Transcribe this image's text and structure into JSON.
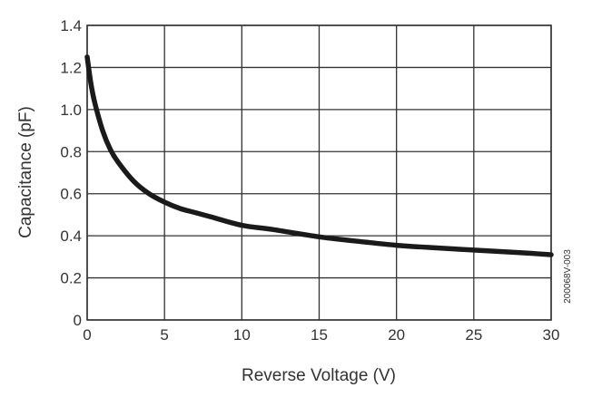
{
  "chart_data": {
    "type": "line",
    "title": "",
    "xlabel": "Reverse Voltage (V)",
    "ylabel": "Capacitance (pF)",
    "xlim": [
      0,
      30
    ],
    "ylim": [
      0,
      1.4
    ],
    "x_ticks": [
      "0",
      "5",
      "10",
      "15",
      "20",
      "25",
      "30"
    ],
    "y_ticks": [
      "0",
      "0.2",
      "0.4",
      "0.6",
      "0.8",
      "1.0",
      "1.2",
      "1.4"
    ],
    "grid": true,
    "legend": "none",
    "series": [
      {
        "color": "#1a1a1a",
        "x": [
          0,
          0.25,
          0.5,
          1,
          1.5,
          2,
          3,
          4,
          5,
          6,
          7,
          8,
          10,
          12,
          15,
          18,
          20,
          22,
          25,
          28,
          30
        ],
        "y": [
          1.25,
          1.12,
          1.03,
          0.9,
          0.81,
          0.75,
          0.66,
          0.6,
          0.56,
          0.53,
          0.51,
          0.49,
          0.45,
          0.43,
          0.395,
          0.37,
          0.355,
          0.345,
          0.332,
          0.32,
          0.31
        ]
      }
    ],
    "annotation": "200068V-003"
  }
}
